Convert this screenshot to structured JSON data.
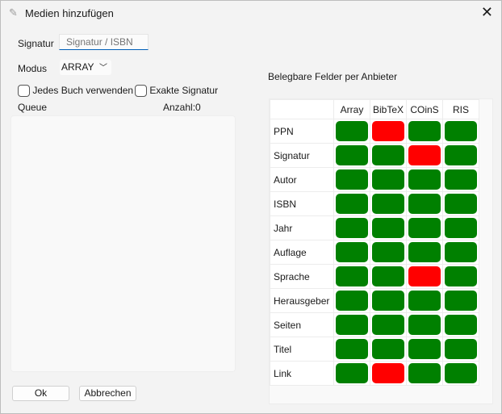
{
  "window": {
    "title": "Medien hinzufügen",
    "icon": "pencil-icon",
    "close": "✕"
  },
  "form": {
    "signatur_label": "Signatur",
    "signatur_placeholder": "Signatur / ISBN",
    "signatur_value": "",
    "modus_label": "Modus",
    "modus_value": "ARRAY",
    "jedes_buch": "Jedes Buch verwenden",
    "jedes_buch_checked": false,
    "exakte_signatur": "Exakte Signatur",
    "exakte_signatur_checked": false
  },
  "queue": {
    "label": "Queue",
    "count_label": "Anzahl:0",
    "items": []
  },
  "buttons": {
    "ok": "Ok",
    "cancel": "Abbrechen"
  },
  "fields": {
    "title": "Belegbare Felder per Anbieter",
    "colors": {
      "available": "#008000",
      "unavailable": "#ff0000"
    },
    "columns": [
      "Array",
      "BibTeX",
      "COinS",
      "RIS"
    ],
    "rows": [
      {
        "name": "PPN",
        "available": [
          true,
          false,
          true,
          true
        ]
      },
      {
        "name": "Signatur",
        "available": [
          true,
          true,
          false,
          true
        ]
      },
      {
        "name": "Autor",
        "available": [
          true,
          true,
          true,
          true
        ]
      },
      {
        "name": "ISBN",
        "available": [
          true,
          true,
          true,
          true
        ]
      },
      {
        "name": "Jahr",
        "available": [
          true,
          true,
          true,
          true
        ]
      },
      {
        "name": "Auflage",
        "available": [
          true,
          true,
          true,
          true
        ]
      },
      {
        "name": "Sprache",
        "available": [
          true,
          true,
          false,
          true
        ]
      },
      {
        "name": "Herausgeber",
        "available": [
          true,
          true,
          true,
          true
        ]
      },
      {
        "name": "Seiten",
        "available": [
          true,
          true,
          true,
          true
        ]
      },
      {
        "name": "Titel",
        "available": [
          true,
          true,
          true,
          true
        ]
      },
      {
        "name": "Link",
        "available": [
          true,
          false,
          true,
          true
        ]
      }
    ]
  }
}
